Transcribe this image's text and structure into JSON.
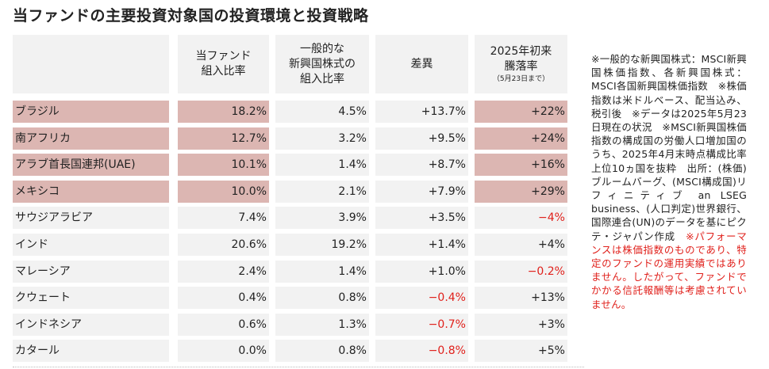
{
  "title": "当ファンドの主要投資対象国の投資環境と投資戦略",
  "headers": {
    "weight": [
      "当ファンド",
      "組入比率"
    ],
    "benchmark": [
      "一般的な",
      "新興国株式の",
      "組入比率"
    ],
    "diff": [
      "差異"
    ],
    "ytd": [
      "2025年初来",
      "騰落率"
    ],
    "ytd_note": "（5月23日まで）"
  },
  "rows": [
    {
      "name": "ブラジル",
      "weight": "18.2%",
      "bench": "4.5%",
      "diff": "+13.7%",
      "ytd": "+22%",
      "highlight": true,
      "diff_neg": false,
      "ytd_neg": false
    },
    {
      "name": "南アフリカ",
      "weight": "12.7%",
      "bench": "3.2%",
      "diff": "+9.5%",
      "ytd": "+24%",
      "highlight": true,
      "diff_neg": false,
      "ytd_neg": false
    },
    {
      "name": "アラブ首長国連邦(UAE)",
      "weight": "10.1%",
      "bench": "1.4%",
      "diff": "+8.7%",
      "ytd": "+16%",
      "highlight": true,
      "diff_neg": false,
      "ytd_neg": false
    },
    {
      "name": "メキシコ",
      "weight": "10.0%",
      "bench": "2.1%",
      "diff": "+7.9%",
      "ytd": "+29%",
      "highlight": true,
      "diff_neg": false,
      "ytd_neg": false
    },
    {
      "name": "サウジアラビア",
      "weight": "7.4%",
      "bench": "3.9%",
      "diff": "+3.5%",
      "ytd": "−4%",
      "highlight": false,
      "diff_neg": false,
      "ytd_neg": true
    },
    {
      "name": "インド",
      "weight": "20.6%",
      "bench": "19.2%",
      "diff": "+1.4%",
      "ytd": "+4%",
      "highlight": false,
      "diff_neg": false,
      "ytd_neg": false
    },
    {
      "name": "マレーシア",
      "weight": "2.4%",
      "bench": "1.4%",
      "diff": "+1.0%",
      "ytd": "−0.2%",
      "highlight": false,
      "diff_neg": false,
      "ytd_neg": true
    },
    {
      "name": "クウェート",
      "weight": "0.4%",
      "bench": "0.8%",
      "diff": "−0.4%",
      "ytd": "+13%",
      "highlight": false,
      "diff_neg": true,
      "ytd_neg": false
    },
    {
      "name": "インドネシア",
      "weight": "0.6%",
      "bench": "1.3%",
      "diff": "−0.7%",
      "ytd": "+3%",
      "highlight": false,
      "diff_neg": true,
      "ytd_neg": false
    },
    {
      "name": "カタール",
      "weight": "0.0%",
      "bench": "0.8%",
      "diff": "−0.8%",
      "ytd": "+5%",
      "highlight": false,
      "diff_neg": true,
      "ytd_neg": false
    }
  ],
  "note": {
    "main": "※一般的な新興国株式：MSCI新興国株価指数、各新興国株式：MSCI各国新興国株価指数　※株価指数は米ドルベース、配当込み、税引後　※データは2025年5月23日現在の状況　※MSCI新興国株価指数の構成国の労働人口増加国のうち、2025年4月末時点構成比率上位10ヵ国を抜粋　出所：(株価)ブルームバーグ、(MSCI構成国)リフィニティブ an LSEG business、(人口判定)世界銀行、国際連合(UN)のデータを基にピクテ・ジャパン作成　",
    "red": "※パフォーマンスは株価指数のものであり、特定のファンドの運用実績ではありません。したがって、ファンドでかかる信託報酬等は考慮されていません。"
  },
  "colors": {
    "highlight": "#dcb6b2",
    "cell": "#f2f2f2",
    "negative": "#e0201b"
  }
}
